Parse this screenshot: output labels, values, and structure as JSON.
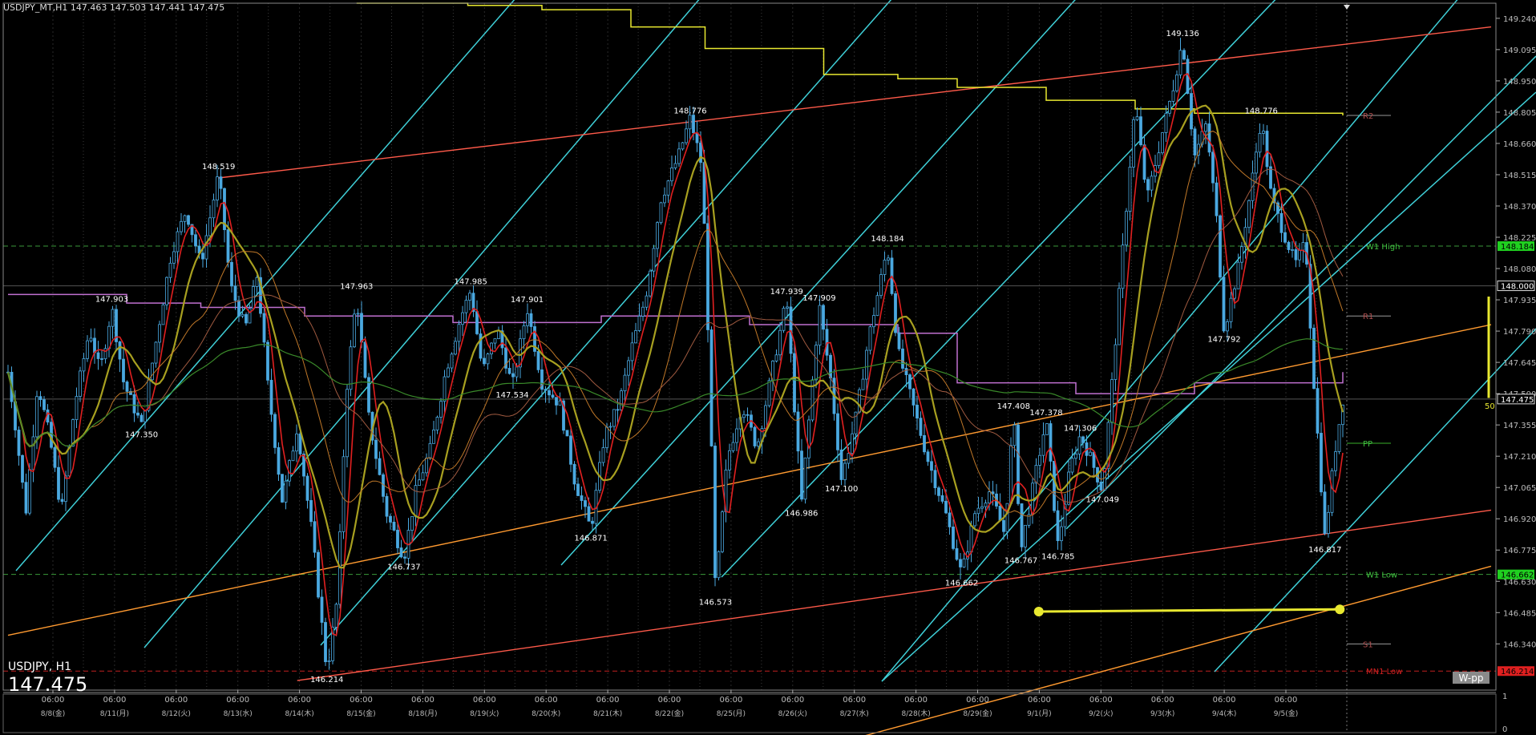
{
  "header": {
    "text": "USDJPY_MT,H1  147.463 147.503 147.441 147.475"
  },
  "symbol_panel": {
    "symbol": "USDJPY, H1",
    "price": "147.475"
  },
  "tag": "W-pp",
  "sub_axis": {
    "top": "1",
    "bottom": "0"
  },
  "colors": {
    "bg": "#000000",
    "grid": "#2a2a2a",
    "axis": "#bbbbbb",
    "candle": "#4aa8e0",
    "cyan": "#3fd0d8",
    "red_line": "#ff5a4a",
    "orange_line": "#ff9a30",
    "yellow": "#e8e830",
    "magenta": "#c070d0",
    "ma_red": "#e02020",
    "ma_olive": "#a8a020",
    "ma_green": "#3a8a2a",
    "w_level": "#3a9a3a"
  },
  "chart_data": {
    "type": "candlestick",
    "symbol": "USDJPY_MT",
    "timeframe": "H1",
    "ohlc_current": {
      "open": 147.463,
      "high": 147.503,
      "low": 147.441,
      "close": 147.475
    },
    "ylim": [
      146.2,
      149.31
    ],
    "y_ticks": [
      "149.240",
      "149.095",
      "148.950",
      "148.805",
      "148.660",
      "148.515",
      "148.370",
      "148.225",
      "148.080",
      "147.935",
      "147.790",
      "147.645",
      "147.500",
      "147.355",
      "147.210",
      "147.065",
      "146.920",
      "146.775",
      "146.630",
      "146.485",
      "146.340"
    ],
    "x_ticks": [
      {
        "date": "8/8(金)",
        "time": "06:00"
      },
      {
        "date": "8/11(月)",
        "time": "06:00"
      },
      {
        "date": "8/12(火)",
        "time": "06:00"
      },
      {
        "date": "8/13(水)",
        "time": "06:00"
      },
      {
        "date": "8/14(木)",
        "time": "06:00"
      },
      {
        "date": "8/15(金)",
        "time": "06:00"
      },
      {
        "date": "8/18(月)",
        "time": "06:00"
      },
      {
        "date": "8/19(火)",
        "time": "06:00"
      },
      {
        "date": "8/20(水)",
        "time": "06:00"
      },
      {
        "date": "8/21(木)",
        "time": "06:00"
      },
      {
        "date": "8/22(金)",
        "time": "06:00"
      },
      {
        "date": "8/25(月)",
        "time": "06:00"
      },
      {
        "date": "8/26(火)",
        "time": "06:00"
      },
      {
        "date": "8/27(水)",
        "time": "06:00"
      },
      {
        "date": "8/28(木)",
        "time": "06:00"
      },
      {
        "date": "8/29(金)",
        "time": "06:00"
      },
      {
        "date": "9/1(月)",
        "time": "06:00"
      },
      {
        "date": "9/2(火)",
        "time": "06:00"
      },
      {
        "date": "9/3(水)",
        "time": "06:00"
      },
      {
        "date": "9/4(木)",
        "time": "06:00"
      },
      {
        "date": "9/5(金)",
        "time": "06:00"
      }
    ],
    "price_tags": [
      {
        "value": 148.184,
        "label": "148.184",
        "color": "#20d020"
      },
      {
        "value": 148.0,
        "label": "148.000",
        "color": "#dddddd"
      },
      {
        "value": 147.475,
        "label": "147.475",
        "color": "#dddddd"
      },
      {
        "value": 146.662,
        "label": "146.662",
        "color": "#20d020"
      },
      {
        "value": 146.214,
        "label": "146.214",
        "color": "#e02020"
      }
    ],
    "levels": [
      {
        "name": "W1 High",
        "value": 148.184,
        "color": "#3a9a3a"
      },
      {
        "name": "W1 Low",
        "value": 146.662,
        "color": "#3a9a3a"
      },
      {
        "name": "MN1 Low",
        "value": 146.214,
        "color": "#c02020"
      },
      {
        "name": "R2",
        "value": 148.79,
        "color": "#999999"
      },
      {
        "name": "R1",
        "value": 147.86,
        "color": "#999999"
      },
      {
        "name": "PP",
        "value": 147.27,
        "color": "#3ab02a"
      },
      {
        "name": "S1",
        "value": 146.34,
        "color": "#999999"
      }
    ],
    "swing_labels": [
      {
        "t": 0.07,
        "v": 147.903,
        "label": "147.903",
        "pos": "above"
      },
      {
        "t": 0.09,
        "v": 147.35,
        "label": "147.350",
        "pos": "below"
      },
      {
        "t": 0.142,
        "v": 148.519,
        "label": "148.519",
        "pos": "above"
      },
      {
        "t": 0.235,
        "v": 147.963,
        "label": "147.963",
        "pos": "above"
      },
      {
        "t": 0.215,
        "v": 146.214,
        "label": "146.214",
        "pos": "below"
      },
      {
        "t": 0.267,
        "v": 146.737,
        "label": "146.737",
        "pos": "below"
      },
      {
        "t": 0.312,
        "v": 147.985,
        "label": "147.985",
        "pos": "above"
      },
      {
        "t": 0.35,
        "v": 147.901,
        "label": "147.901",
        "pos": "above"
      },
      {
        "t": 0.34,
        "v": 147.534,
        "label": "147.534",
        "pos": "below"
      },
      {
        "t": 0.393,
        "v": 146.871,
        "label": "146.871",
        "pos": "below"
      },
      {
        "t": 0.46,
        "v": 148.776,
        "label": "148.776",
        "pos": "above"
      },
      {
        "t": 0.477,
        "v": 146.573,
        "label": "146.573",
        "pos": "below"
      },
      {
        "t": 0.525,
        "v": 147.939,
        "label": "147.939",
        "pos": "above"
      },
      {
        "t": 0.547,
        "v": 147.909,
        "label": "147.909",
        "pos": "above"
      },
      {
        "t": 0.535,
        "v": 146.986,
        "label": "146.986",
        "pos": "below"
      },
      {
        "t": 0.562,
        "v": 147.1,
        "label": "147.100",
        "pos": "below"
      },
      {
        "t": 0.593,
        "v": 148.184,
        "label": "148.184",
        "pos": "above"
      },
      {
        "t": 0.643,
        "v": 146.662,
        "label": "146.662",
        "pos": "below"
      },
      {
        "t": 0.678,
        "v": 147.408,
        "label": "147.408",
        "pos": "above"
      },
      {
        "t": 0.683,
        "v": 146.767,
        "label": "146.767",
        "pos": "below"
      },
      {
        "t": 0.7,
        "v": 147.378,
        "label": "147.378",
        "pos": "above"
      },
      {
        "t": 0.708,
        "v": 146.785,
        "label": "146.785",
        "pos": "below"
      },
      {
        "t": 0.723,
        "v": 147.306,
        "label": "147.306",
        "pos": "above"
      },
      {
        "t": 0.738,
        "v": 147.049,
        "label": "147.049",
        "pos": "below"
      },
      {
        "t": 0.792,
        "v": 149.136,
        "label": "149.136",
        "pos": "above"
      },
      {
        "t": 0.82,
        "v": 147.792,
        "label": "147.792",
        "pos": "below"
      },
      {
        "t": 0.845,
        "v": 148.776,
        "label": "148.776",
        "pos": "above"
      },
      {
        "t": 0.888,
        "v": 146.817,
        "label": "146.817",
        "pos": "below"
      }
    ],
    "price_path": [
      [
        0.0,
        147.6
      ],
      [
        0.005,
        147.35
      ],
      [
        0.012,
        146.95
      ],
      [
        0.02,
        147.55
      ],
      [
        0.028,
        147.3
      ],
      [
        0.036,
        146.95
      ],
      [
        0.045,
        147.45
      ],
      [
        0.055,
        147.8
      ],
      [
        0.062,
        147.6
      ],
      [
        0.07,
        147.9
      ],
      [
        0.078,
        147.55
      ],
      [
        0.09,
        147.35
      ],
      [
        0.1,
        147.75
      ],
      [
        0.11,
        148.15
      ],
      [
        0.12,
        148.35
      ],
      [
        0.13,
        148.1
      ],
      [
        0.142,
        148.52
      ],
      [
        0.15,
        148.0
      ],
      [
        0.16,
        147.8
      ],
      [
        0.168,
        148.05
      ],
      [
        0.175,
        147.55
      ],
      [
        0.185,
        147.0
      ],
      [
        0.195,
        147.35
      ],
      [
        0.205,
        146.85
      ],
      [
        0.215,
        146.21
      ],
      [
        0.222,
        146.55
      ],
      [
        0.228,
        147.5
      ],
      [
        0.235,
        147.96
      ],
      [
        0.243,
        147.4
      ],
      [
        0.255,
        146.95
      ],
      [
        0.267,
        146.74
      ],
      [
        0.275,
        147.05
      ],
      [
        0.285,
        147.25
      ],
      [
        0.295,
        147.6
      ],
      [
        0.305,
        147.85
      ],
      [
        0.312,
        147.98
      ],
      [
        0.32,
        147.6
      ],
      [
        0.33,
        147.8
      ],
      [
        0.34,
        147.53
      ],
      [
        0.35,
        147.9
      ],
      [
        0.36,
        147.55
      ],
      [
        0.372,
        147.45
      ],
      [
        0.382,
        147.1
      ],
      [
        0.393,
        146.87
      ],
      [
        0.402,
        147.3
      ],
      [
        0.412,
        147.45
      ],
      [
        0.42,
        147.7
      ],
      [
        0.43,
        147.95
      ],
      [
        0.44,
        148.4
      ],
      [
        0.452,
        148.6
      ],
      [
        0.46,
        148.78
      ],
      [
        0.468,
        148.55
      ],
      [
        0.472,
        147.8
      ],
      [
        0.477,
        146.57
      ],
      [
        0.485,
        147.2
      ],
      [
        0.495,
        147.45
      ],
      [
        0.505,
        147.25
      ],
      [
        0.515,
        147.6
      ],
      [
        0.525,
        147.94
      ],
      [
        0.535,
        146.99
      ],
      [
        0.547,
        147.91
      ],
      [
        0.555,
        147.55
      ],
      [
        0.562,
        147.1
      ],
      [
        0.572,
        147.4
      ],
      [
        0.58,
        147.75
      ],
      [
        0.593,
        148.18
      ],
      [
        0.6,
        147.7
      ],
      [
        0.61,
        147.45
      ],
      [
        0.62,
        147.2
      ],
      [
        0.632,
        146.95
      ],
      [
        0.643,
        146.66
      ],
      [
        0.652,
        146.95
      ],
      [
        0.662,
        147.05
      ],
      [
        0.672,
        146.85
      ],
      [
        0.678,
        147.41
      ],
      [
        0.683,
        146.77
      ],
      [
        0.692,
        147.1
      ],
      [
        0.7,
        147.38
      ],
      [
        0.708,
        146.79
      ],
      [
        0.716,
        147.15
      ],
      [
        0.723,
        147.31
      ],
      [
        0.73,
        147.2
      ],
      [
        0.738,
        147.05
      ],
      [
        0.745,
        147.6
      ],
      [
        0.752,
        148.2
      ],
      [
        0.76,
        148.85
      ],
      [
        0.768,
        148.4
      ],
      [
        0.778,
        148.7
      ],
      [
        0.785,
        148.9
      ],
      [
        0.792,
        149.14
      ],
      [
        0.8,
        148.6
      ],
      [
        0.808,
        148.75
      ],
      [
        0.815,
        148.3
      ],
      [
        0.82,
        147.79
      ],
      [
        0.83,
        148.1
      ],
      [
        0.838,
        148.45
      ],
      [
        0.845,
        148.78
      ],
      [
        0.852,
        148.4
      ],
      [
        0.86,
        148.25
      ],
      [
        0.868,
        148.1
      ],
      [
        0.875,
        148.2
      ],
      [
        0.88,
        147.6
      ],
      [
        0.888,
        146.82
      ],
      [
        0.894,
        147.2
      ],
      [
        0.9,
        147.475
      ]
    ],
    "yellow_step_line": [
      [
        0.235,
        149.31
      ],
      [
        0.31,
        149.3
      ],
      [
        0.36,
        149.28
      ],
      [
        0.42,
        149.2
      ],
      [
        0.47,
        149.1
      ],
      [
        0.55,
        148.98
      ],
      [
        0.6,
        148.96
      ],
      [
        0.64,
        148.92
      ],
      [
        0.7,
        148.86
      ],
      [
        0.76,
        148.82
      ],
      [
        0.8,
        148.8
      ],
      [
        0.9,
        148.79
      ]
    ],
    "magenta_step_line": [
      [
        0.0,
        147.96
      ],
      [
        0.08,
        147.92
      ],
      [
        0.13,
        147.9
      ],
      [
        0.2,
        147.86
      ],
      [
        0.3,
        147.83
      ],
      [
        0.4,
        147.86
      ],
      [
        0.5,
        147.82
      ],
      [
        0.6,
        147.78
      ],
      [
        0.64,
        147.55
      ],
      [
        0.72,
        147.5
      ],
      [
        0.8,
        147.55
      ],
      [
        0.9,
        147.6
      ]
    ],
    "trendlines": [
      {
        "color": "#ff5a4a",
        "points": [
          [
            0.142,
            148.5
          ],
          [
            1.0,
            149.2
          ]
        ]
      },
      {
        "color": "#ff5a4a",
        "points": [
          [
            0.195,
            146.17
          ],
          [
            1.0,
            146.96
          ]
        ]
      },
      {
        "color": "#ff9a30",
        "points": [
          [
            0.0,
            146.38
          ],
          [
            1.0,
            147.82
          ]
        ]
      },
      {
        "color": "#ff9a30",
        "points": [
          [
            0.57,
            145.9
          ],
          [
            1.0,
            146.7
          ]
        ]
      }
    ],
    "yellow_bar": {
      "from": [
        0.695,
        146.49
      ],
      "to": [
        0.898,
        146.5
      ],
      "label": "50"
    }
  }
}
